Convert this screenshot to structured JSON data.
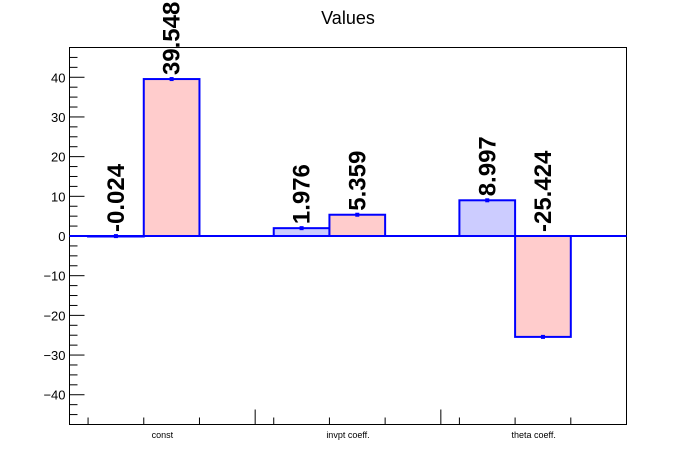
{
  "chart_data": {
    "type": "bar",
    "title": "Values",
    "xlabel": "",
    "ylabel": "",
    "categories": [
      "const",
      "invpt coeff.",
      "theta coeff."
    ],
    "series": [
      {
        "values": [
          -0.024,
          1.976,
          8.997
        ],
        "color": "#ccccff",
        "edge_color": "#0000ff"
      },
      {
        "values": [
          39.548,
          5.359,
          -25.424
        ],
        "color": "#ffcccc",
        "edge_color": "#0000ff"
      }
    ],
    "data_labels": [
      [
        "-0.024",
        "1.976",
        "8.997"
      ],
      [
        "39.548",
        "5.359",
        "-25.424"
      ]
    ],
    "ylim": [
      -47.5,
      47.5
    ],
    "yticks": [
      -40,
      -30,
      -20,
      -10,
      0,
      10,
      20,
      30,
      40
    ],
    "ytick_labels": [
      "−40",
      "−30",
      "−20",
      "−10",
      "0",
      "10",
      "20",
      "30",
      "40"
    ],
    "grid": false,
    "legend": "none",
    "frame_color": "#000000"
  }
}
